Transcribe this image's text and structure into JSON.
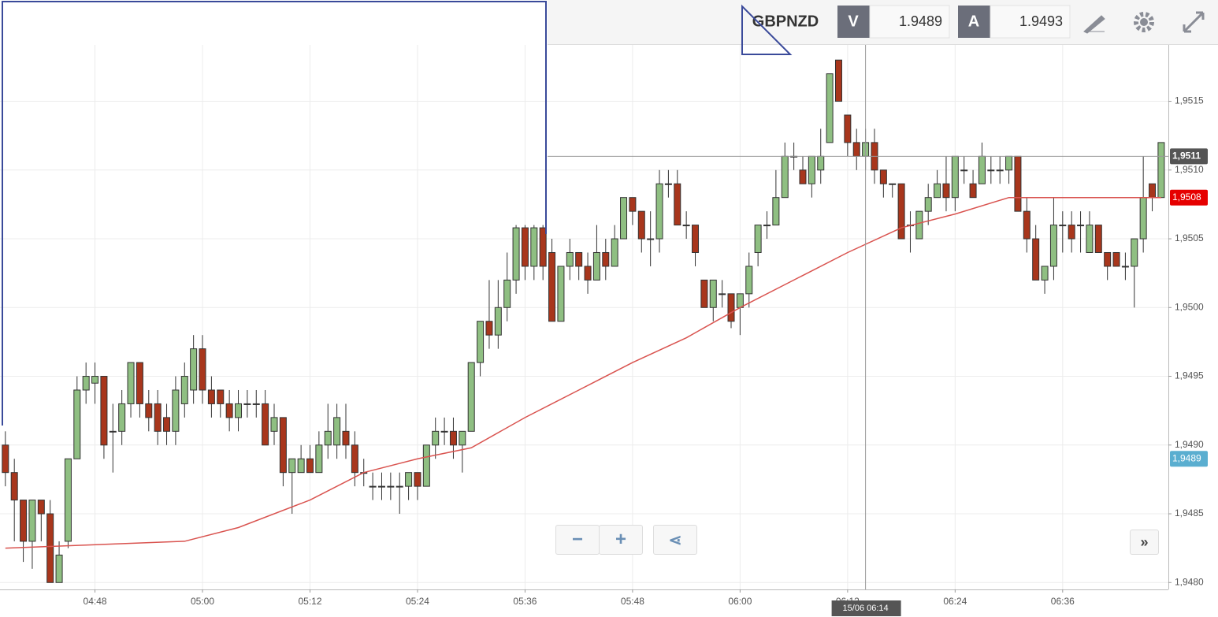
{
  "header": {
    "symbol": "GBPNZD",
    "bid": {
      "label": "V",
      "value": "1.9489"
    },
    "ask": {
      "label": "A",
      "value": "1.9493"
    }
  },
  "chart_data": {
    "type": "candlestick",
    "x": [
      278,
      279,
      280,
      281,
      282,
      283,
      284,
      285,
      286,
      287,
      288,
      289,
      290,
      291,
      292,
      293,
      294,
      295,
      296,
      297,
      298,
      299,
      300,
      301,
      302,
      303,
      304,
      305,
      306,
      307,
      308,
      309,
      310,
      311,
      312,
      313,
      314,
      315,
      316,
      317,
      318,
      319,
      320,
      321,
      322,
      323,
      324,
      325,
      326,
      327,
      328,
      329,
      330,
      331,
      332,
      333,
      334,
      335,
      336,
      337,
      338,
      339,
      340,
      341,
      342,
      343,
      344,
      345,
      346,
      347,
      348,
      349,
      350,
      351,
      352,
      353,
      354,
      355,
      356,
      357,
      358,
      359,
      360,
      361,
      362,
      363,
      364,
      365,
      366,
      367,
      368,
      369,
      370,
      371,
      372,
      373,
      374,
      375,
      376,
      377,
      378,
      379,
      380,
      381,
      382,
      383,
      384,
      385,
      386,
      387,
      388,
      389,
      390,
      391,
      392,
      393,
      394,
      395,
      396,
      397,
      398,
      399,
      400,
      401,
      402,
      403,
      404,
      405,
      406,
      407
    ],
    "candles": [
      [
        1.949,
        1.9491,
        1.9487,
        1.9488
      ],
      [
        1.9488,
        1.9489,
        1.9483,
        1.9486
      ],
      [
        1.9486,
        1.9486,
        1.94815,
        1.9483
      ],
      [
        1.9483,
        1.9486,
        1.9481,
        1.9486
      ],
      [
        1.9486,
        1.9486,
        1.9483,
        1.9485
      ],
      [
        1.9485,
        1.9486,
        1.948,
        1.948
      ],
      [
        1.948,
        1.9483,
        1.948,
        1.9482
      ],
      [
        1.9483,
        1.9489,
        1.94825,
        1.9489
      ],
      [
        1.9489,
        1.9495,
        1.9489,
        1.9494
      ],
      [
        1.9494,
        1.9496,
        1.9493,
        1.9495
      ],
      [
        1.94945,
        1.9496,
        1.9493,
        1.9495
      ],
      [
        1.9495,
        1.9495,
        1.9489,
        1.949
      ],
      [
        1.9491,
        1.9493,
        1.9488,
        1.9491
      ],
      [
        1.9491,
        1.9494,
        1.949,
        1.9493
      ],
      [
        1.9493,
        1.9496,
        1.9492,
        1.9496
      ],
      [
        1.9496,
        1.9496,
        1.9492,
        1.9493
      ],
      [
        1.9493,
        1.9494,
        1.9491,
        1.9492
      ],
      [
        1.9493,
        1.9494,
        1.949,
        1.9491
      ],
      [
        1.9492,
        1.9493,
        1.949,
        1.9491
      ],
      [
        1.9491,
        1.9495,
        1.949,
        1.9494
      ],
      [
        1.9493,
        1.9496,
        1.9492,
        1.9495
      ],
      [
        1.9494,
        1.9498,
        1.9493,
        1.9497
      ],
      [
        1.9497,
        1.9498,
        1.9493,
        1.9494
      ],
      [
        1.9494,
        1.9495,
        1.9492,
        1.9493
      ],
      [
        1.9494,
        1.9494,
        1.9492,
        1.9493
      ],
      [
        1.9493,
        1.9494,
        1.9491,
        1.9492
      ],
      [
        1.9492,
        1.9494,
        1.9491,
        1.9493
      ],
      [
        1.9493,
        1.9494,
        1.9492,
        1.9493
      ],
      [
        1.9493,
        1.9494,
        1.9492,
        1.9493
      ],
      [
        1.9493,
        1.9494,
        1.949,
        1.949
      ],
      [
        1.9491,
        1.9493,
        1.949,
        1.9492
      ],
      [
        1.9492,
        1.9492,
        1.9487,
        1.9488
      ],
      [
        1.9488,
        1.9489,
        1.9485,
        1.9489
      ],
      [
        1.9488,
        1.949,
        1.9488,
        1.9489
      ],
      [
        1.9489,
        1.949,
        1.9488,
        1.9488
      ],
      [
        1.9488,
        1.9491,
        1.9488,
        1.949
      ],
      [
        1.949,
        1.9493,
        1.9489,
        1.9491
      ],
      [
        1.949,
        1.9493,
        1.9489,
        1.9492
      ],
      [
        1.9491,
        1.9493,
        1.9489,
        1.949
      ],
      [
        1.949,
        1.9491,
        1.9487,
        1.9488
      ],
      [
        1.9488,
        1.9489,
        1.9487,
        1.9488
      ],
      [
        1.9487,
        1.9488,
        1.9486,
        1.9487
      ],
      [
        1.9487,
        1.9488,
        1.9486,
        1.9487
      ],
      [
        1.9487,
        1.9488,
        1.9486,
        1.9487
      ],
      [
        1.9487,
        1.9488,
        1.9485,
        1.9487
      ],
      [
        1.9487,
        1.9488,
        1.9486,
        1.9488
      ],
      [
        1.9488,
        1.9488,
        1.9486,
        1.9487
      ],
      [
        1.9487,
        1.949,
        1.9487,
        1.949
      ],
      [
        1.949,
        1.9492,
        1.9489,
        1.9491
      ],
      [
        1.9491,
        1.9492,
        1.949,
        1.9491
      ],
      [
        1.9491,
        1.9492,
        1.9489,
        1.949
      ],
      [
        1.949,
        1.9491,
        1.9488,
        1.9491
      ],
      [
        1.9491,
        1.9496,
        1.9491,
        1.9496
      ],
      [
        1.9496,
        1.9499,
        1.9495,
        1.9499
      ],
      [
        1.9499,
        1.9502,
        1.9497,
        1.9498
      ],
      [
        1.9498,
        1.9502,
        1.9497,
        1.95
      ],
      [
        1.95,
        1.9504,
        1.9499,
        1.9502
      ],
      [
        1.9502,
        1.9506,
        1.9501,
        1.95058
      ],
      [
        1.95058,
        1.9506,
        1.9502,
        1.9503
      ],
      [
        1.9503,
        1.9506,
        1.9502,
        1.95058
      ],
      [
        1.95058,
        1.9506,
        1.9502,
        1.9503
      ],
      [
        1.9504,
        1.9505,
        1.9499,
        1.9499
      ],
      [
        1.9499,
        1.9503,
        1.9499,
        1.9503
      ],
      [
        1.9503,
        1.9505,
        1.9502,
        1.9504
      ],
      [
        1.9504,
        1.9504,
        1.9502,
        1.9503
      ],
      [
        1.9503,
        1.9504,
        1.9501,
        1.9502
      ],
      [
        1.9502,
        1.9506,
        1.9502,
        1.9504
      ],
      [
        1.9504,
        1.9505,
        1.9502,
        1.9503
      ],
      [
        1.9503,
        1.9506,
        1.9503,
        1.9505
      ],
      [
        1.9505,
        1.9508,
        1.9505,
        1.9508
      ],
      [
        1.9508,
        1.9508,
        1.9506,
        1.9507
      ],
      [
        1.9507,
        1.9507,
        1.9504,
        1.9505
      ],
      [
        1.9505,
        1.9507,
        1.9503,
        1.9505
      ],
      [
        1.9505,
        1.951,
        1.9504,
        1.9509
      ],
      [
        1.9509,
        1.951,
        1.9508,
        1.9509
      ],
      [
        1.9509,
        1.951,
        1.9506,
        1.9506
      ],
      [
        1.9506,
        1.9507,
        1.9505,
        1.9506
      ],
      [
        1.9506,
        1.9506,
        1.9503,
        1.9504
      ],
      [
        1.9502,
        1.9502,
        1.95,
        1.95
      ],
      [
        1.95,
        1.9502,
        1.9499,
        1.9502
      ],
      [
        1.9501,
        1.9502,
        1.95,
        1.9501
      ],
      [
        1.9501,
        1.9501,
        1.94985,
        1.9499
      ],
      [
        1.95,
        1.9501,
        1.9498,
        1.9501
      ],
      [
        1.9501,
        1.9504,
        1.95,
        1.9503
      ],
      [
        1.9504,
        1.9506,
        1.9503,
        1.9506
      ],
      [
        1.9506,
        1.9507,
        1.9505,
        1.9506
      ],
      [
        1.9506,
        1.951,
        1.9506,
        1.9508
      ],
      [
        1.9508,
        1.9512,
        1.9508,
        1.9511
      ],
      [
        1.9511,
        1.9512,
        1.951,
        1.9511
      ],
      [
        1.951,
        1.9511,
        1.9509,
        1.9509
      ],
      [
        1.9509,
        1.9511,
        1.9508,
        1.9511
      ],
      [
        1.951,
        1.9513,
        1.9509,
        1.9511
      ],
      [
        1.9512,
        1.9517,
        1.9512,
        1.9517
      ],
      [
        1.9518,
        1.9518,
        1.9515,
        1.9515
      ],
      [
        1.9514,
        1.9514,
        1.9511,
        1.9512
      ],
      [
        1.9512,
        1.9513,
        1.951,
        1.9511
      ],
      [
        1.9511,
        1.9513,
        1.951,
        1.9512
      ],
      [
        1.9512,
        1.9513,
        1.9509,
        1.951
      ],
      [
        1.951,
        1.951,
        1.9508,
        1.9509
      ],
      [
        1.9509,
        1.9509,
        1.9508,
        1.9509
      ],
      [
        1.9509,
        1.9509,
        1.9505,
        1.9505
      ],
      [
        1.9506,
        1.9507,
        1.9504,
        1.9506
      ],
      [
        1.9505,
        1.9507,
        1.9505,
        1.9507
      ],
      [
        1.9507,
        1.9509,
        1.9506,
        1.9508
      ],
      [
        1.9508,
        1.951,
        1.9508,
        1.9509
      ],
      [
        1.9509,
        1.9511,
        1.9507,
        1.9508
      ],
      [
        1.9508,
        1.9511,
        1.9507,
        1.9511
      ],
      [
        1.951,
        1.9511,
        1.9509,
        1.951
      ],
      [
        1.9509,
        1.951,
        1.9508,
        1.9508
      ],
      [
        1.9509,
        1.9512,
        1.9509,
        1.9511
      ],
      [
        1.951,
        1.9511,
        1.9509,
        1.951
      ],
      [
        1.951,
        1.9511,
        1.9509,
        1.951
      ],
      [
        1.951,
        1.9511,
        1.9509,
        1.9511
      ],
      [
        1.9511,
        1.9511,
        1.9507,
        1.9507
      ],
      [
        1.9507,
        1.9508,
        1.9504,
        1.9505
      ],
      [
        1.9505,
        1.9506,
        1.9502,
        1.9502
      ],
      [
        1.9502,
        1.9503,
        1.9501,
        1.9503
      ],
      [
        1.9503,
        1.9508,
        1.9502,
        1.9506
      ],
      [
        1.9506,
        1.9507,
        1.9504,
        1.9506
      ],
      [
        1.9506,
        1.9507,
        1.9504,
        1.9505
      ],
      [
        1.9506,
        1.9507,
        1.9504,
        1.9506
      ],
      [
        1.9504,
        1.9507,
        1.9504,
        1.9506
      ],
      [
        1.9506,
        1.9506,
        1.9504,
        1.9504
      ],
      [
        1.9504,
        1.9504,
        1.9502,
        1.9503
      ],
      [
        1.9504,
        1.9504,
        1.9503,
        1.9503
      ],
      [
        1.9503,
        1.9504,
        1.9502,
        1.9503
      ],
      [
        1.9503,
        1.9505,
        1.95,
        1.9505
      ],
      [
        1.9505,
        1.9511,
        1.9504,
        1.9508
      ],
      [
        1.9509,
        1.9509,
        1.9507,
        1.9508
      ],
      [
        1.9508,
        1.9512,
        1.9508,
        1.9512
      ]
    ],
    "up_color": "#8fbf82",
    "down_color": "#a8361c",
    "moving_average": {
      "color": "#d9534f",
      "x": [
        278,
        290,
        298,
        304,
        312,
        318,
        324,
        330,
        336,
        342,
        348,
        354,
        360,
        366,
        372,
        378,
        384,
        390,
        396,
        402,
        407
      ],
      "values": [
        1.94825,
        1.94828,
        1.9483,
        1.9484,
        1.9486,
        1.9488,
        1.9489,
        1.94898,
        1.9492,
        1.9494,
        1.9496,
        1.94978,
        1.95,
        1.9502,
        1.9504,
        1.95058,
        1.95068,
        1.9508,
        1.9508,
        1.9508,
        1.9508
      ]
    },
    "xlim": [
      277.4,
      407.8
    ],
    "xticks": [
      {
        "value": 288,
        "label": "04:48"
      },
      {
        "value": 300,
        "label": "05:00"
      },
      {
        "value": 312,
        "label": "05:12"
      },
      {
        "value": 324,
        "label": "05:24"
      },
      {
        "value": 336,
        "label": "05:36"
      },
      {
        "value": 348,
        "label": "05:48"
      },
      {
        "value": 360,
        "label": "06:00"
      },
      {
        "value": 372,
        "label": "06:12"
      },
      {
        "value": 384,
        "label": "06:24"
      },
      {
        "value": 396,
        "label": "06:36"
      }
    ],
    "ylim": [
      1.94795,
      1.95191
    ],
    "yticks": [
      {
        "value": 1.948,
        "label": "1,9480"
      },
      {
        "value": 1.9485,
        "label": "1,9485"
      },
      {
        "value": 1.949,
        "label": "1,9490"
      },
      {
        "value": 1.9495,
        "label": "1,9495"
      },
      {
        "value": 1.95,
        "label": "1,9500"
      },
      {
        "value": 1.9505,
        "label": "1,9505"
      },
      {
        "value": 1.951,
        "label": "1,9510"
      },
      {
        "value": 1.9515,
        "label": "1,9515"
      }
    ],
    "grid": true,
    "crosshair": {
      "x": 374,
      "x_label": "15/06 06:14",
      "y": 1.9511,
      "y_label": "1,9511"
    },
    "price_labels": [
      {
        "value": 1.9508,
        "label": "1,9508",
        "color": "#e60000"
      },
      {
        "value": 1.9489,
        "label": "1,9489",
        "color": "#5aaed0"
      }
    ]
  }
}
